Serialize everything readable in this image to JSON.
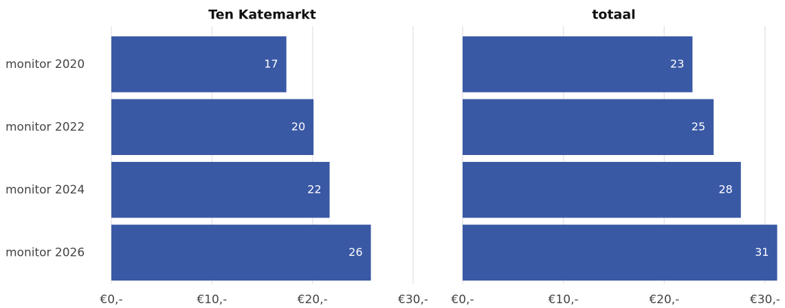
{
  "chart_data": [
    {
      "type": "bar",
      "orientation": "horizontal",
      "title": "Ten Katemarkt",
      "categories": [
        "monitor 2020",
        "monitor 2022",
        "monitor 2024",
        "monitor 2026"
      ],
      "values": [
        17.4,
        20.1,
        21.7,
        25.8
      ],
      "value_labels": [
        "17",
        "20",
        "22",
        "26"
      ],
      "color": "#3a59a5",
      "xlim": [
        0,
        30
      ],
      "xticks": [
        {
          "value": 0,
          "label": "€0,-"
        },
        {
          "value": 10,
          "label": "€10,-"
        },
        {
          "value": 20,
          "label": "€20,-"
        },
        {
          "value": 30,
          "label": "€30,-"
        }
      ],
      "grid": true
    },
    {
      "type": "bar",
      "orientation": "horizontal",
      "title": "totaal",
      "values": [
        22.8,
        24.9,
        27.6,
        31.2
      ],
      "value_labels": [
        "23",
        "25",
        "28",
        "31"
      ],
      "color": "#3a59a5",
      "xlim": [
        0,
        30
      ],
      "xticks": [
        {
          "value": 0,
          "label": "€0,-"
        },
        {
          "value": 10,
          "label": "€10,-"
        },
        {
          "value": 20,
          "label": "€20,-"
        },
        {
          "value": 30,
          "label": "€30,-"
        }
      ],
      "grid": true
    }
  ]
}
